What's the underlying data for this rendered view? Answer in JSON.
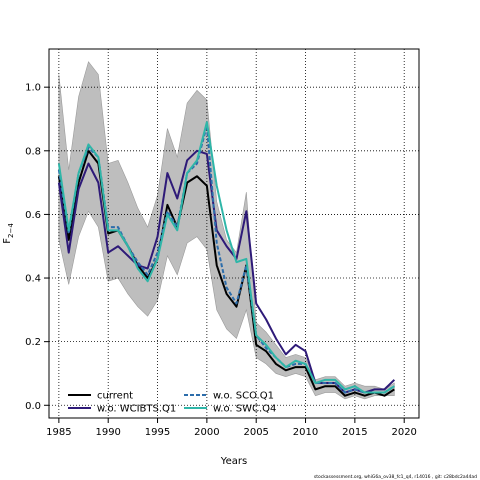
{
  "chart_data": {
    "type": "line",
    "xlabel": "Years",
    "ylabel": "F",
    "ylabel_sub": "2−4",
    "xlim": [
      1984,
      2021.5
    ],
    "ylim": [
      -0.04,
      1.12
    ],
    "xticks": [
      1985,
      1990,
      1995,
      2000,
      2005,
      2010,
      2015,
      2020
    ],
    "yticks": [
      0.0,
      0.2,
      0.4,
      0.6,
      0.8,
      1.0
    ],
    "ytick_labels": [
      "0.0",
      "0.2",
      "0.4",
      "0.6",
      "0.8",
      "1.0"
    ],
    "grid": true,
    "legend_placement": "bottom-left",
    "footer": "stockassessment.org, whiG6a_ov38_fc1_q4, r14016 , git: c28bdc2a44ad",
    "x": [
      1985,
      1986,
      1987,
      1988,
      1989,
      1990,
      1991,
      1992,
      1993,
      1994,
      1995,
      1996,
      1997,
      1998,
      1999,
      2000,
      2001,
      2002,
      2003,
      2004,
      2005,
      2006,
      2007,
      2008,
      2009,
      2010,
      2011,
      2012,
      2013,
      2014,
      2015,
      2016,
      2017,
      2018,
      2019
    ],
    "band": {
      "name": "current confidence interval",
      "color": "#bebebe",
      "upper": [
        1.04,
        0.74,
        0.97,
        1.08,
        1.04,
        0.76,
        0.77,
        0.7,
        0.62,
        0.56,
        0.66,
        0.87,
        0.78,
        0.95,
        0.99,
        0.96,
        0.64,
        0.52,
        0.48,
        0.67,
        0.26,
        0.23,
        0.19,
        0.15,
        0.16,
        0.15,
        0.08,
        0.09,
        0.09,
        0.06,
        0.07,
        0.06,
        0.06,
        0.05,
        0.07
      ],
      "lower": [
        0.52,
        0.38,
        0.53,
        0.61,
        0.56,
        0.39,
        0.4,
        0.35,
        0.31,
        0.28,
        0.33,
        0.47,
        0.41,
        0.51,
        0.53,
        0.49,
        0.3,
        0.24,
        0.21,
        0.3,
        0.15,
        0.13,
        0.1,
        0.09,
        0.1,
        0.09,
        0.03,
        0.04,
        0.04,
        0.02,
        0.03,
        0.02,
        0.03,
        0.03,
        0.03
      ]
    },
    "series": [
      {
        "name": "current",
        "color": "#000000",
        "dash": "solid",
        "values": [
          0.72,
          0.52,
          0.7,
          0.8,
          0.76,
          0.54,
          0.55,
          0.5,
          0.44,
          0.4,
          0.46,
          0.63,
          0.56,
          0.7,
          0.72,
          0.69,
          0.44,
          0.35,
          0.31,
          0.44,
          0.19,
          0.17,
          0.13,
          0.11,
          0.12,
          0.12,
          0.05,
          0.06,
          0.06,
          0.03,
          0.04,
          0.03,
          0.04,
          0.03,
          0.05
        ]
      },
      {
        "name": "w.o. WCIBTS.Q1",
        "color": "#2e1a78",
        "dash": "solid",
        "values": [
          0.7,
          0.48,
          0.68,
          0.76,
          0.7,
          0.48,
          0.5,
          0.47,
          0.44,
          0.43,
          0.53,
          0.73,
          0.65,
          0.77,
          0.8,
          0.79,
          0.55,
          0.5,
          0.46,
          0.61,
          0.32,
          0.27,
          0.21,
          0.16,
          0.19,
          0.17,
          0.07,
          0.07,
          0.07,
          0.04,
          0.05,
          0.04,
          0.05,
          0.05,
          0.08
        ]
      },
      {
        "name": "w.o. SCO.Q1",
        "color": "#2c6dab",
        "dash": "dashed",
        "values": [
          0.74,
          0.54,
          0.73,
          0.81,
          0.78,
          0.56,
          0.56,
          0.5,
          0.45,
          0.41,
          0.48,
          0.61,
          0.56,
          0.73,
          0.76,
          0.88,
          0.51,
          0.37,
          0.32,
          0.44,
          0.22,
          0.18,
          0.15,
          0.12,
          0.13,
          0.13,
          0.07,
          0.07,
          0.07,
          0.04,
          0.05,
          0.04,
          0.04,
          0.04,
          0.06
        ]
      },
      {
        "name": "w.o. SWC.Q4",
        "color": "#2fb6a8",
        "dash": "solid",
        "values": [
          0.76,
          0.55,
          0.73,
          0.82,
          0.78,
          0.55,
          0.55,
          0.5,
          0.43,
          0.39,
          0.46,
          0.6,
          0.55,
          0.73,
          0.77,
          0.89,
          0.69,
          0.55,
          0.45,
          0.46,
          0.22,
          0.19,
          0.15,
          0.12,
          0.14,
          0.13,
          0.07,
          0.08,
          0.08,
          0.05,
          0.06,
          0.04,
          0.04,
          0.04,
          0.06
        ]
      }
    ]
  }
}
